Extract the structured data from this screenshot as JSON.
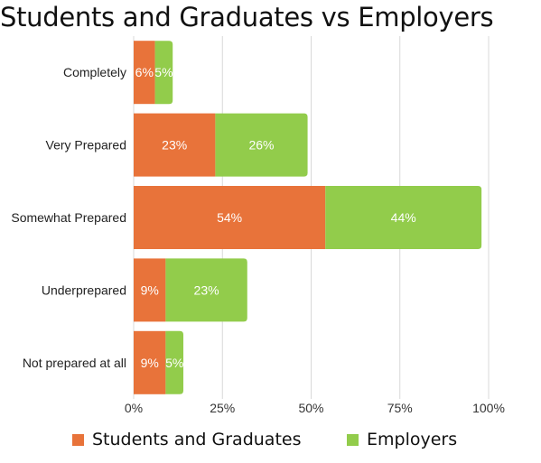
{
  "chart_data": {
    "type": "bar",
    "orientation": "horizontal",
    "stacked": true,
    "title": "Students and Graduates vs Employers",
    "categories": [
      "Completely",
      "Very Prepared",
      "Somewhat Prepared",
      "Underprepared",
      "Not prepared at all"
    ],
    "series": [
      {
        "name": "Students and Graduates",
        "values": [
          6,
          23,
          54,
          9,
          9
        ],
        "labels": [
          "6%",
          "23%",
          "54%",
          "9%",
          "9%"
        ],
        "color": "#E8733A"
      },
      {
        "name": "Employers",
        "values": [
          5,
          26,
          44,
          23,
          5
        ],
        "labels": [
          "5%",
          "26%",
          "44%",
          "23%",
          "5%"
        ],
        "color": "#92CC4B"
      }
    ],
    "xlim": [
      0,
      100
    ],
    "x_ticks": [
      "0%",
      "25%",
      "50%",
      "75%",
      "100%"
    ],
    "x_tick_values": [
      0,
      25,
      50,
      75,
      100
    ],
    "grid": "vertical",
    "legend": "bottom"
  }
}
